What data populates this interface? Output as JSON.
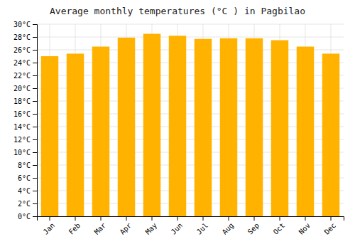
{
  "chart_data": {
    "type": "bar",
    "title": "Average monthly temperatures (°C ) in Pagbilao",
    "categories": [
      "Jan",
      "Feb",
      "Mar",
      "Apr",
      "May",
      "Jun",
      "Jul",
      "Aug",
      "Sep",
      "Oct",
      "Nov",
      "Dec"
    ],
    "values": [
      25.0,
      25.4,
      26.5,
      27.9,
      28.5,
      28.2,
      27.7,
      27.8,
      27.8,
      27.5,
      26.5,
      25.4
    ],
    "color": "#FFB300",
    "ylim": [
      0,
      30
    ],
    "yticks": [
      {
        "value": 0,
        "label": "0°C"
      },
      {
        "value": 2,
        "label": "2°C"
      },
      {
        "value": 4,
        "label": "4°C"
      },
      {
        "value": 6,
        "label": "6°C"
      },
      {
        "value": 8,
        "label": "8°C"
      },
      {
        "value": 10,
        "label": "10°C"
      },
      {
        "value": 12,
        "label": "12°C"
      },
      {
        "value": 14,
        "label": "14°C"
      },
      {
        "value": 16,
        "label": "16°C"
      },
      {
        "value": 18,
        "label": "18°C"
      },
      {
        "value": 20,
        "label": "20°C"
      },
      {
        "value": 22,
        "label": "22°C"
      },
      {
        "value": 24,
        "label": "24°C"
      },
      {
        "value": 26,
        "label": "26°C"
      },
      {
        "value": 28,
        "label": "28°C"
      },
      {
        "value": 30,
        "label": "30°C"
      }
    ],
    "grid": true
  }
}
